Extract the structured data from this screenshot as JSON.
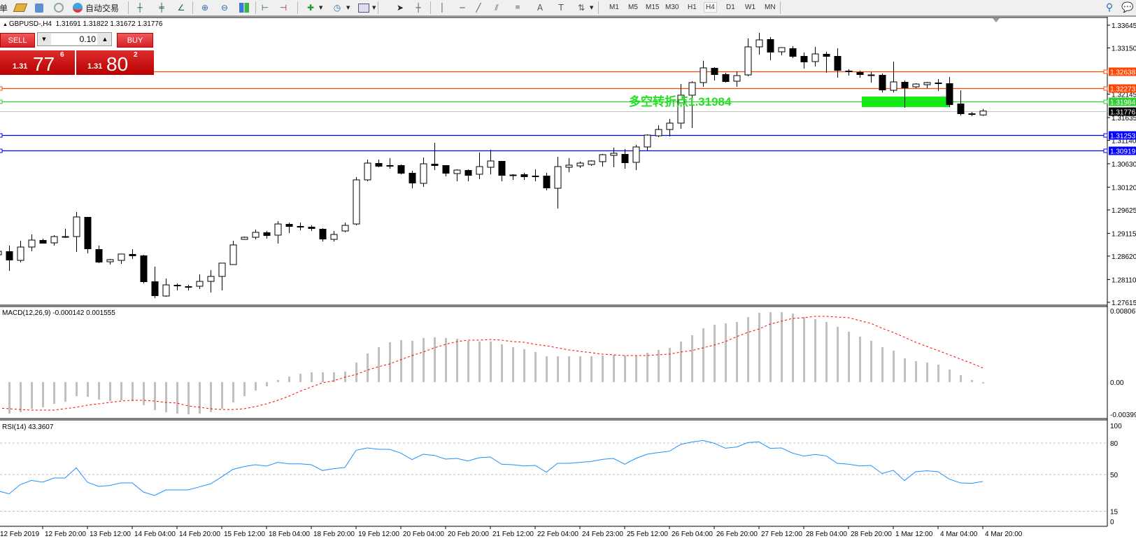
{
  "toolbar": {
    "left_partial_char": "单",
    "autotrade_label": "自动交易",
    "icons": [
      "new-order-icon",
      "market-watch-icon",
      "signals-icon",
      "autotrade-icon",
      "bar-chart-icon",
      "candlestick-icon",
      "line-chart-icon",
      "zoom-in-icon",
      "zoom-out-icon",
      "tile-windows-icon",
      "auto-scroll-icon",
      "chart-shift-icon",
      "indicators-icon",
      "periods-icon",
      "templates-icon",
      "cursor-icon",
      "crosshair-icon",
      "vertical-line-icon",
      "horizontal-line-icon",
      "trendline-icon",
      "equidistant-channel-icon",
      "fibonacci-icon",
      "text-icon",
      "text-label-icon",
      "arrows-icon",
      "search-icon",
      "chat-icon"
    ],
    "timeframes": [
      "M1",
      "M5",
      "M15",
      "M30",
      "H1",
      "H4",
      "D1",
      "W1",
      "MN"
    ],
    "active_timeframe": "H4"
  },
  "chart_header": {
    "symbol": "GBPUSD-,H4",
    "ohlc": "1.31691 1.31822 1.31672 1.31776"
  },
  "trade_panel": {
    "sell_label": "SELL",
    "buy_label": "BUY",
    "lot": "0.10",
    "sell_price": {
      "small": "1.31",
      "big": "77",
      "sup": "6"
    },
    "buy_price": {
      "small": "1.31",
      "big": "80",
      "sup": "2"
    }
  },
  "annotation": {
    "text": "多空转折点",
    "value": "1.31984",
    "color": "#22e022"
  },
  "chart_data": {
    "type": "candlestick",
    "symbol": "GBPUSD-",
    "timeframe": "H4",
    "price_ticks": [
      "1.33645",
      "1.33150",
      "1.32145",
      "1.31635",
      "1.31140",
      "1.30630",
      "1.30120",
      "1.29625",
      "1.29115",
      "1.28620",
      "1.28110",
      "1.27615"
    ],
    "ylim": [
      1.27615,
      1.33645
    ],
    "time_labels": [
      "12 Feb 2019",
      "12 Feb 20:00",
      "13 Feb 12:00",
      "14 Feb 04:00",
      "14 Feb 20:00",
      "15 Feb 12:00",
      "18 Feb 04:00",
      "18 Feb 20:00",
      "19 Feb 12:00",
      "20 Feb 04:00",
      "20 Feb 20:00",
      "21 Feb 12:00",
      "22 Feb 04:00",
      "24 Feb 23:00",
      "25 Feb 12:00",
      "26 Feb 04:00",
      "26 Feb 20:00",
      "27 Feb 12:00",
      "28 Feb 04:00",
      "28 Feb 20:00",
      "1 Mar 12:00",
      "4 Mar 04:00",
      "4 Mar 20:00"
    ],
    "ohlc": [
      [
        1.28649,
        1.28786,
        1.28588,
        1.28725
      ],
      [
        1.28725,
        1.28847,
        1.28299,
        1.28527
      ],
      [
        1.28527,
        1.28954,
        1.28482,
        1.28817
      ],
      [
        1.28817,
        1.29091,
        1.28725,
        1.28969
      ],
      [
        1.28969,
        1.29,
        1.28893,
        1.28893
      ],
      [
        1.28908,
        1.29076,
        1.28847,
        1.29045
      ],
      [
        1.2903,
        1.29213,
        1.29015,
        1.29045
      ],
      [
        1.29045,
        1.29578,
        1.2871,
        1.29472
      ],
      [
        1.29472,
        1.29472,
        1.2868,
        1.28771
      ],
      [
        1.28771,
        1.28847,
        1.28467,
        1.28482
      ],
      [
        1.28497,
        1.28558,
        1.28436,
        1.28543
      ],
      [
        1.28527,
        1.28665,
        1.28451,
        1.28665
      ],
      [
        1.28665,
        1.28771,
        1.28558,
        1.28619
      ],
      [
        1.28634,
        1.28649,
        1.28025,
        1.28055
      ],
      [
        1.2807,
        1.2839,
        1.27705,
        1.27751
      ],
      [
        1.27751,
        1.28132,
        1.27735,
        1.27994
      ],
      [
        1.27994,
        1.28025,
        1.27873,
        1.27964
      ],
      [
        1.27964,
        1.27994,
        1.27873,
        1.27934
      ],
      [
        1.27964,
        1.28223,
        1.27903,
        1.2807
      ],
      [
        1.2807,
        1.28314,
        1.27827,
        1.28178
      ],
      [
        1.28178,
        1.28467,
        1.27873,
        1.28467
      ],
      [
        1.28436,
        1.28954,
        1.28436,
        1.28863
      ],
      [
        1.28984,
        1.29045,
        1.28984,
        1.2903
      ],
      [
        1.2903,
        1.29198,
        1.28984,
        1.29137
      ],
      [
        1.29137,
        1.29167,
        1.29,
        1.29061
      ],
      [
        1.29076,
        1.2938,
        1.28893,
        1.29319
      ],
      [
        1.29319,
        1.2935,
        1.29121,
        1.29258
      ],
      [
        1.29274,
        1.2935,
        1.29182,
        1.29243
      ],
      [
        1.29258,
        1.29289,
        1.29167,
        1.29213
      ],
      [
        1.29213,
        1.29228,
        1.28939,
        1.28984
      ],
      [
        1.28984,
        1.29167,
        1.28939,
        1.29091
      ],
      [
        1.29167,
        1.2935,
        1.29137,
        1.29289
      ],
      [
        1.29319,
        1.3034,
        1.29289,
        1.30279
      ],
      [
        1.30279,
        1.30721,
        1.30248,
        1.30644
      ],
      [
        1.30644,
        1.30721,
        1.30553,
        1.30568
      ],
      [
        1.30599,
        1.30751,
        1.30523,
        1.30568
      ],
      [
        1.30599,
        1.30614,
        1.30401,
        1.30416
      ],
      [
        1.30431,
        1.30477,
        1.30096,
        1.30203
      ],
      [
        1.30203,
        1.30766,
        1.30127,
        1.30629
      ],
      [
        1.30629,
        1.31086,
        1.30492,
        1.30583
      ],
      [
        1.30599,
        1.30599,
        1.30355,
        1.30416
      ],
      [
        1.30416,
        1.30507,
        1.30248,
        1.30492
      ],
      [
        1.30492,
        1.30507,
        1.30248,
        1.3037
      ],
      [
        1.30401,
        1.30873,
        1.30294,
        1.30568
      ],
      [
        1.30553,
        1.30934,
        1.30401,
        1.3069
      ],
      [
        1.3069,
        1.3069,
        1.30248,
        1.3037
      ],
      [
        1.30386,
        1.30401,
        1.30279,
        1.30386
      ],
      [
        1.30401,
        1.30431,
        1.30279,
        1.3034
      ],
      [
        1.3037,
        1.30507,
        1.30248,
        1.3034
      ],
      [
        1.3037,
        1.30431,
        1.3005,
        1.30096
      ],
      [
        1.30096,
        1.30781,
        1.29654,
        1.30568
      ],
      [
        1.30553,
        1.30751,
        1.30447,
        1.30599
      ],
      [
        1.30583,
        1.30675,
        1.30538,
        1.30644
      ],
      [
        1.30614,
        1.30705,
        1.30583,
        1.3069
      ],
      [
        1.30675,
        1.30842,
        1.30568,
        1.30827
      ],
      [
        1.30812,
        1.30979,
        1.30553,
        1.30858
      ],
      [
        1.30842,
        1.30949,
        1.30523,
        1.30644
      ],
      [
        1.3066,
        1.3104,
        1.30492,
        1.30995
      ],
      [
        1.30995,
        1.31269,
        1.30919,
        1.31254
      ],
      [
        1.31238,
        1.31467,
        1.31208,
        1.31375
      ],
      [
        1.31375,
        1.31604,
        1.31223,
        1.31513
      ],
      [
        1.31513,
        1.32365,
        1.31391,
        1.32122
      ],
      [
        1.32122,
        1.32426,
        1.31406,
        1.32396
      ],
      [
        1.32396,
        1.32868,
        1.32304,
        1.32716
      ],
      [
        1.32716,
        1.32731,
        1.32442,
        1.32563
      ],
      [
        1.32579,
        1.32609,
        1.32396,
        1.32411
      ],
      [
        1.32426,
        1.32639,
        1.32304,
        1.32548
      ],
      [
        1.32563,
        1.33355,
        1.32533,
        1.33173
      ],
      [
        1.33173,
        1.33477,
        1.33005,
        1.33325
      ],
      [
        1.3334,
        1.33386,
        1.32883,
        1.33051
      ],
      [
        1.33066,
        1.33157,
        1.3299,
        1.33157
      ],
      [
        1.33142,
        1.33188,
        1.32929,
        1.32959
      ],
      [
        1.32975,
        1.33051,
        1.327,
        1.32838
      ],
      [
        1.32853,
        1.33173,
        1.32746,
        1.3302
      ],
      [
        1.3302,
        1.33066,
        1.32609,
        1.32959
      ],
      [
        1.32975,
        1.33142,
        1.32503,
        1.32655
      ],
      [
        1.32655,
        1.32685,
        1.32548,
        1.32624
      ],
      [
        1.32624,
        1.32655,
        1.32503,
        1.32563
      ],
      [
        1.32563,
        1.32624,
        1.32396,
        1.32563
      ],
      [
        1.32563,
        1.32594,
        1.32183,
        1.32228
      ],
      [
        1.32228,
        1.32853,
        1.32183,
        1.32411
      ],
      [
        1.32411,
        1.32442,
        1.31848,
        1.32274
      ],
      [
        1.32304,
        1.32381,
        1.32274,
        1.32365
      ],
      [
        1.3235,
        1.32411,
        1.32274,
        1.32396
      ],
      [
        1.32396,
        1.32472,
        1.32213,
        1.32365
      ],
      [
        1.32381,
        1.32518,
        1.31863,
        1.31909
      ],
      [
        1.31939,
        1.32228,
        1.3168,
        1.31711
      ],
      [
        1.31726,
        1.31756,
        1.31665,
        1.31695
      ],
      [
        1.31691,
        1.31822,
        1.31672,
        1.31776
      ]
    ],
    "hlines": [
      {
        "price": "1.32638",
        "color": "#ff4500",
        "left_marker": false
      },
      {
        "price": "1.32273",
        "color": "#ff4500",
        "left_marker": true
      },
      {
        "price": "1.31984",
        "color": "#32cd32",
        "left_marker": true
      },
      {
        "price": "1.31253",
        "color": "#0000ff",
        "left_marker": true
      },
      {
        "price": "1.30919",
        "color": "#0000ff",
        "left_marker": true
      }
    ],
    "bid_line": {
      "price": "1.31776",
      "color": "#c0c0c0",
      "label_bg": "#000000"
    },
    "zone": {
      "from_price": 1.31863,
      "to_price": 1.32091,
      "color": "#11ee11"
    },
    "macd": {
      "label": "MACD(12,26,9) -0.000142 0.001555",
      "axis_labels": [
        "0.008067",
        "0.00",
        "-0.00399"
      ],
      "range": [
        -0.00399,
        0.008067
      ],
      "histogram": [
        -0.00346,
        -0.00346,
        -0.0033,
        -0.00292,
        -0.00276,
        -0.00238,
        -0.00215,
        -0.00154,
        -0.00161,
        -0.00192,
        -0.00207,
        -0.002,
        -0.00207,
        -0.00253,
        -0.00307,
        -0.0033,
        -0.00346,
        -0.00353,
        -0.00346,
        -0.0033,
        -0.00292,
        -0.00223,
        -0.00154,
        -0.00092,
        -0.00046,
        0.00023,
        0.00061,
        0.00092,
        0.00108,
        0.00108,
        0.00108,
        0.00115,
        0.00215,
        0.00315,
        0.00384,
        0.00438,
        0.00461,
        0.00453,
        0.00484,
        0.00492,
        0.00484,
        0.00476,
        0.00453,
        0.00445,
        0.00445,
        0.00415,
        0.00384,
        0.00361,
        0.0033,
        0.00284,
        0.00284,
        0.00284,
        0.00284,
        0.00284,
        0.00292,
        0.003,
        0.00292,
        0.00292,
        0.00323,
        0.00353,
        0.00376,
        0.00445,
        0.00515,
        0.00591,
        0.0063,
        0.00645,
        0.0066,
        0.00714,
        0.0076,
        0.00768,
        0.00768,
        0.00753,
        0.00714,
        0.00691,
        0.0066,
        0.00607,
        0.00553,
        0.00499,
        0.00453,
        0.00384,
        0.00346,
        0.00261,
        0.0023,
        0.00215,
        0.00192,
        0.00138,
        0.00077,
        0.00023,
        -0.000142
      ],
      "signal": [
        -0.00284,
        -0.00292,
        -0.003,
        -0.00307,
        -0.00307,
        -0.00307,
        -0.00292,
        -0.00276,
        -0.00253,
        -0.00238,
        -0.00223,
        -0.00207,
        -0.002,
        -0.002,
        -0.00207,
        -0.00223,
        -0.0023,
        -0.00261,
        -0.00276,
        -0.00292,
        -0.003,
        -0.003,
        -0.00292,
        -0.00269,
        -0.00238,
        -0.002,
        -0.00154,
        -0.001,
        -0.00054,
        -8e-05,
        0.00015,
        0.00054,
        0.00084,
        0.00131,
        0.00169,
        0.002,
        0.00246,
        0.00292,
        0.0033,
        0.00376,
        0.00415,
        0.00445,
        0.00461,
        0.00461,
        0.00468,
        0.00461,
        0.00445,
        0.00438,
        0.00415,
        0.00399,
        0.00376,
        0.00353,
        0.00338,
        0.00323,
        0.00307,
        0.003,
        0.00292,
        0.00292,
        0.00292,
        0.003,
        0.00307,
        0.0033,
        0.00346,
        0.00376,
        0.00407,
        0.00445,
        0.00499,
        0.00545,
        0.00584,
        0.00637,
        0.00668,
        0.00699,
        0.00707,
        0.00722,
        0.00722,
        0.00714,
        0.00707,
        0.00676,
        0.00645,
        0.00591,
        0.00545,
        0.00492,
        0.00438,
        0.00392,
        0.00346,
        0.003,
        0.00253,
        0.00207,
        0.001555
      ],
      "histogram_color": "#c0c0c0",
      "signal_color": "#ff0000"
    },
    "rsi": {
      "label": "RSI(14) 43.3607",
      "axis_labels": [
        "100",
        "80",
        "50",
        "15",
        "0"
      ],
      "levels": [
        80,
        50,
        15
      ],
      "values": [
        34.4,
        31.6,
        40.4,
        44.4,
        42.7,
        46.7,
        46.7,
        56.4,
        42.7,
        38.7,
        39.6,
        42,
        42,
        33.3,
        30,
        35.3,
        35.3,
        35.3,
        38.2,
        41.1,
        47.8,
        54.9,
        57.6,
        59.3,
        58,
        61.6,
        60.2,
        60.2,
        59.3,
        53.8,
        55.6,
        56.7,
        73.1,
        75.3,
        74,
        74,
        70.4,
        64.2,
        69.3,
        68.2,
        64.7,
        65.3,
        62.9,
        66,
        66.7,
        59.8,
        59.3,
        58.2,
        58.7,
        52.2,
        60.7,
        60.7,
        61.6,
        62.4,
        64.4,
        65.3,
        59.8,
        65.3,
        69.3,
        70.9,
        72.2,
        78.7,
        80.9,
        82.4,
        79.8,
        75.1,
        76.2,
        80.4,
        81.1,
        74.9,
        75.3,
        70.4,
        67.6,
        69.1,
        67.8,
        60.7,
        59.8,
        58.2,
        58.7,
        50.9,
        54,
        44.2,
        52.7,
        53.6,
        52.7,
        45.6,
        42,
        41.6,
        43.3607
      ],
      "color": "#1e90ff"
    }
  }
}
